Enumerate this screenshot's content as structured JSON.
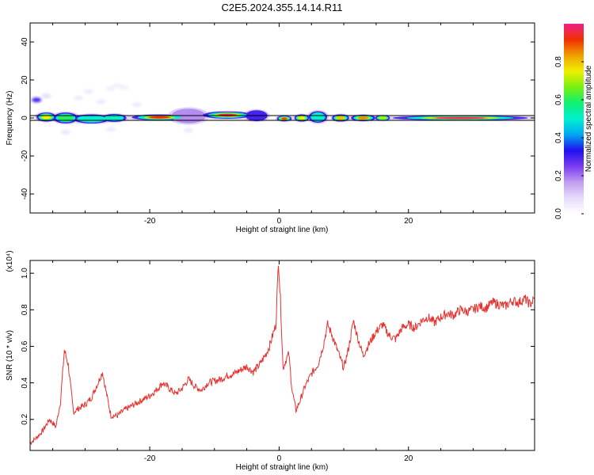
{
  "title": "C2E5.2024.355.14.14.R11",
  "colors": {
    "snr_line": "#e8322f",
    "track_line": "#000000",
    "colormap": [
      "#ffffff",
      "#e6dcfa",
      "#c09cf0",
      "#7a3cf0",
      "#2010f0",
      "#00a8f0",
      "#00f0d0",
      "#10f070",
      "#78f010",
      "#f0f000",
      "#f0a000",
      "#f03000",
      "#f0208a"
    ]
  },
  "chart_data": [
    {
      "type": "heatmap",
      "id": "spectrogram",
      "xlabel": "Height of straight line (km)",
      "ylabel": "Frequency (Hz)",
      "xlim": [
        -38.5,
        39.5
      ],
      "ylim": [
        -50,
        50
      ],
      "xticks": [
        -20,
        0,
        20
      ],
      "xtick_labels": [
        "-20",
        "0",
        "20"
      ],
      "yticks": [
        -40,
        -20,
        0,
        20,
        40
      ],
      "ytick_labels": [
        "-40",
        "-20",
        "0",
        "20",
        "40"
      ],
      "colorbar": {
        "label": "Normalized spectral amplitude",
        "range": [
          0,
          1
        ],
        "ticks": [
          0.0,
          0.2,
          0.4,
          0.6,
          0.8
        ],
        "tick_labels": [
          "0.0",
          "0.2",
          "0.4",
          "0.6",
          "0.8"
        ]
      },
      "ridge_frequency_hz": 0,
      "blobs": [
        {
          "x": -36.0,
          "y": 0.5,
          "half_width_km": 1.6,
          "half_height_hz": 2.5,
          "amp": 0.75
        },
        {
          "x": -33.0,
          "y": 0.0,
          "half_width_km": 2.0,
          "half_height_hz": 3.0,
          "amp": 0.6
        },
        {
          "x": -29.0,
          "y": -0.5,
          "half_width_km": 3.0,
          "half_height_hz": 2.5,
          "amp": 0.55
        },
        {
          "x": -25.5,
          "y": 0.0,
          "half_width_km": 2.0,
          "half_height_hz": 2.2,
          "amp": 0.5
        },
        {
          "x": -18.5,
          "y": 0.3,
          "half_width_km": 4.5,
          "half_height_hz": 1.6,
          "amp": 0.92
        },
        {
          "x": -14.0,
          "y": 1.0,
          "half_width_km": 2.8,
          "half_height_hz": 4.0,
          "amp": 0.18
        },
        {
          "x": -8.0,
          "y": 1.5,
          "half_width_km": 4.0,
          "half_height_hz": 2.0,
          "amp": 0.96
        },
        {
          "x": -3.5,
          "y": 1.2,
          "half_width_km": 1.8,
          "half_height_hz": 3.0,
          "amp": 0.35
        },
        {
          "x": 0.8,
          "y": -0.3,
          "half_width_km": 1.2,
          "half_height_hz": 1.6,
          "amp": 0.9
        },
        {
          "x": 3.5,
          "y": 0.0,
          "half_width_km": 1.2,
          "half_height_hz": 2.0,
          "amp": 0.75
        },
        {
          "x": 6.0,
          "y": 0.5,
          "half_width_km": 1.5,
          "half_height_hz": 3.2,
          "amp": 0.55
        },
        {
          "x": 9.5,
          "y": 0.0,
          "half_width_km": 1.4,
          "half_height_hz": 2.0,
          "amp": 0.8
        },
        {
          "x": 13.0,
          "y": 0.0,
          "half_width_km": 2.0,
          "half_height_hz": 1.8,
          "amp": 0.85
        },
        {
          "x": 16.0,
          "y": 0.0,
          "half_width_km": 1.2,
          "half_height_hz": 1.6,
          "amp": 0.7
        },
        {
          "x": 28.0,
          "y": 0.0,
          "half_width_km": 11.0,
          "half_height_hz": 1.3,
          "amp": 0.96
        }
      ],
      "scatter_patches": [
        {
          "x": -37.5,
          "y": 9.5,
          "amp": 0.3
        },
        {
          "x": -36.0,
          "y": 11.5,
          "amp": 0.08
        },
        {
          "x": -31.0,
          "y": 10.5,
          "amp": 0.05
        },
        {
          "x": -29.5,
          "y": 14.0,
          "amp": 0.05
        },
        {
          "x": -26.0,
          "y": 15.5,
          "amp": 0.04
        },
        {
          "x": -25.0,
          "y": 17.0,
          "amp": 0.04
        },
        {
          "x": -24.0,
          "y": 16.0,
          "amp": 0.04
        },
        {
          "x": -27.5,
          "y": 8.5,
          "amp": 0.05
        },
        {
          "x": -22.0,
          "y": 7.0,
          "amp": 0.05
        },
        {
          "x": -33.0,
          "y": -7.5,
          "amp": 0.06
        },
        {
          "x": -26.0,
          "y": -6.0,
          "amp": 0.05
        },
        {
          "x": -14.0,
          "y": -6.5,
          "amp": 0.05
        }
      ]
    },
    {
      "type": "line",
      "id": "snr",
      "xlabel": "Height of straight line (km)",
      "ylabel": "SNR (10 * v/v)",
      "y_multiplier_label": "(x10⁴)",
      "xlim": [
        -38.5,
        39.5
      ],
      "ylim": [
        0.03,
        1.07
      ],
      "xticks": [
        -20,
        0,
        20
      ],
      "xtick_labels": [
        "-20",
        "0",
        "20"
      ],
      "yticks": [
        0.2,
        0.4,
        0.6,
        0.8,
        1.0
      ],
      "ytick_labels": [
        "0.2",
        "0.4",
        "0.6",
        "0.8",
        "1.0"
      ],
      "series": [
        {
          "x": [
            -38.5,
            -37.5,
            -36.5,
            -35.5,
            -34.5,
            -33.8,
            -33.2,
            -32.6,
            -31.8,
            -31.0,
            -30.0,
            -29.0,
            -28.0,
            -27.3,
            -26.8,
            -26.0,
            -25.0,
            -24.0,
            -23.0,
            -22.0,
            -21.0,
            -20.0,
            -19.0,
            -18.0,
            -17.0,
            -16.0,
            -15.0,
            -14.0,
            -13.0,
            -12.0,
            -11.0,
            -10.0,
            -9.0,
            -8.0,
            -7.0,
            -6.0,
            -5.0,
            -4.0,
            -3.0,
            -2.0,
            -1.5,
            -1.0,
            -0.5,
            -0.1,
            0.2,
            0.6,
            1.0,
            1.5,
            2.0,
            2.6,
            3.2,
            4.0,
            5.0,
            6.0,
            6.8,
            7.5,
            8.2,
            9.0,
            10.0,
            10.8,
            11.5,
            12.2,
            13.0,
            14.0,
            15.0,
            16.0,
            17.0,
            18.0,
            19.0,
            20.0,
            21.0,
            22.0,
            23.0,
            24.0,
            25.0,
            26.0,
            27.0,
            28.0,
            29.0,
            30.0,
            31.0,
            32.0,
            33.0,
            34.0,
            35.0,
            36.0,
            37.0,
            38.0,
            38.8,
            39.5
          ],
          "y": [
            0.07,
            0.1,
            0.14,
            0.2,
            0.16,
            0.3,
            0.58,
            0.5,
            0.24,
            0.26,
            0.28,
            0.32,
            0.4,
            0.46,
            0.36,
            0.22,
            0.22,
            0.25,
            0.27,
            0.29,
            0.31,
            0.33,
            0.36,
            0.4,
            0.37,
            0.34,
            0.37,
            0.42,
            0.38,
            0.36,
            0.4,
            0.41,
            0.42,
            0.44,
            0.45,
            0.47,
            0.49,
            0.46,
            0.5,
            0.56,
            0.6,
            0.66,
            0.72,
            1.07,
            0.86,
            0.48,
            0.52,
            0.56,
            0.36,
            0.25,
            0.3,
            0.38,
            0.45,
            0.5,
            0.6,
            0.72,
            0.66,
            0.58,
            0.48,
            0.6,
            0.74,
            0.64,
            0.55,
            0.62,
            0.68,
            0.72,
            0.66,
            0.64,
            0.7,
            0.72,
            0.7,
            0.74,
            0.76,
            0.73,
            0.76,
            0.78,
            0.77,
            0.8,
            0.79,
            0.8,
            0.82,
            0.81,
            0.84,
            0.83,
            0.82,
            0.85,
            0.84,
            0.86,
            0.83,
            0.86
          ]
        }
      ]
    }
  ]
}
